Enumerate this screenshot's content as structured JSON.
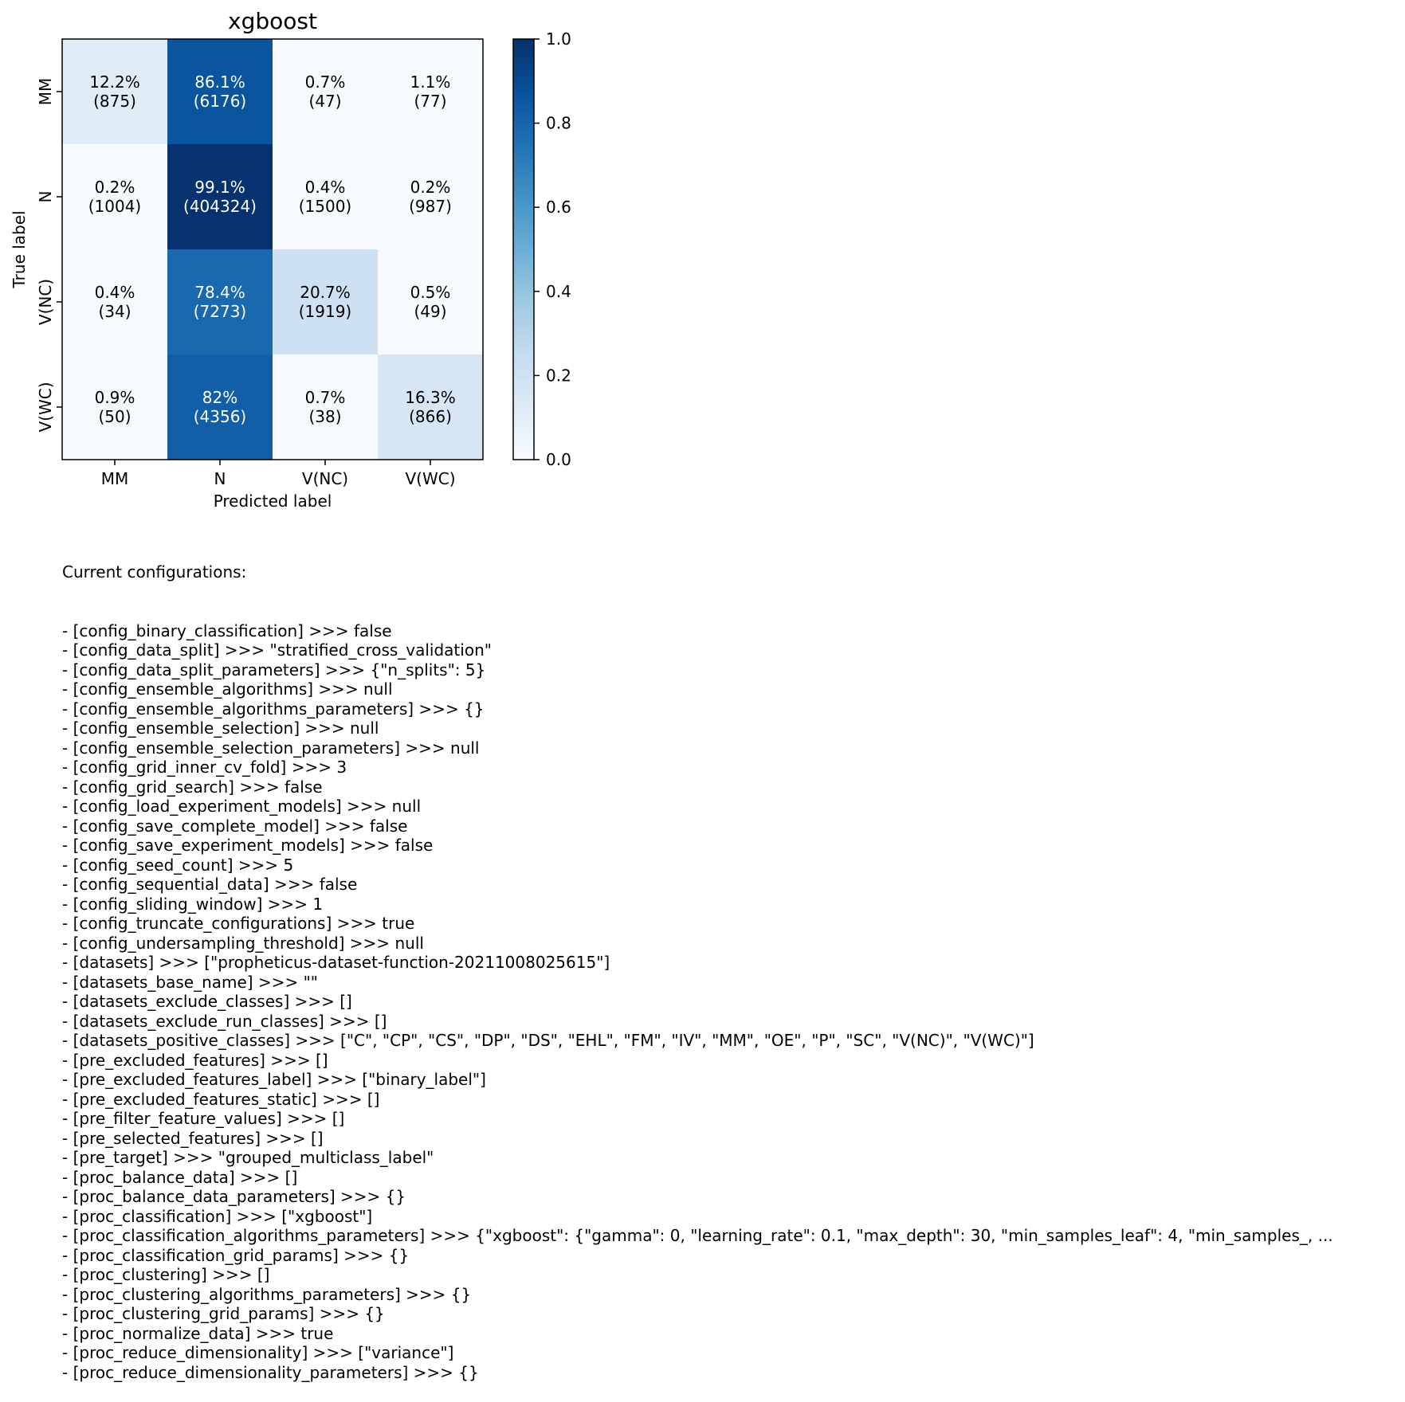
{
  "chart_data": {
    "type": "heatmap",
    "title": "xgboost",
    "xlabel": "Predicted label",
    "ylabel": "True label",
    "x_categories": [
      "MM",
      "N",
      "V(NC)",
      "V(WC)"
    ],
    "y_categories": [
      "MM",
      "N",
      "V(NC)",
      "V(WC)"
    ],
    "cells": [
      [
        {
          "pct": "12.2%",
          "count": "(875)",
          "value": 0.122
        },
        {
          "pct": "86.1%",
          "count": "(6176)",
          "value": 0.861
        },
        {
          "pct": "0.7%",
          "count": "(47)",
          "value": 0.007
        },
        {
          "pct": "1.1%",
          "count": "(77)",
          "value": 0.011
        }
      ],
      [
        {
          "pct": "0.2%",
          "count": "(1004)",
          "value": 0.002
        },
        {
          "pct": "99.1%",
          "count": "(404324)",
          "value": 0.991
        },
        {
          "pct": "0.4%",
          "count": "(1500)",
          "value": 0.004
        },
        {
          "pct": "0.2%",
          "count": "(987)",
          "value": 0.002
        }
      ],
      [
        {
          "pct": "0.4%",
          "count": "(34)",
          "value": 0.004
        },
        {
          "pct": "78.4%",
          "count": "(7273)",
          "value": 0.784
        },
        {
          "pct": "20.7%",
          "count": "(1919)",
          "value": 0.207
        },
        {
          "pct": "0.5%",
          "count": "(49)",
          "value": 0.005
        }
      ],
      [
        {
          "pct": "0.9%",
          "count": "(50)",
          "value": 0.009
        },
        {
          "pct": "82%",
          "count": "(4356)",
          "value": 0.82
        },
        {
          "pct": "0.7%",
          "count": "(38)",
          "value": 0.007
        },
        {
          "pct": "16.3%",
          "count": "(866)",
          "value": 0.163
        }
      ]
    ],
    "colorbar": {
      "range": [
        0.0,
        1.0
      ],
      "ticks": [
        "0.0",
        "0.2",
        "0.4",
        "0.6",
        "0.8",
        "1.0"
      ],
      "colormap": "Blues"
    },
    "grid": false
  },
  "config": {
    "heading": "Current configurations:",
    "lines": [
      "- [config_binary_classification] >>> false",
      "- [config_data_split] >>> \"stratified_cross_validation\"",
      "- [config_data_split_parameters] >>> {\"n_splits\": 5}",
      "- [config_ensemble_algorithms] >>> null",
      "- [config_ensemble_algorithms_parameters] >>> {}",
      "- [config_ensemble_selection] >>> null",
      "- [config_ensemble_selection_parameters] >>> null",
      "- [config_grid_inner_cv_fold] >>> 3",
      "- [config_grid_search] >>> false",
      "- [config_load_experiment_models] >>> null",
      "- [config_save_complete_model] >>> false",
      "- [config_save_experiment_models] >>> false",
      "- [config_seed_count] >>> 5",
      "- [config_sequential_data] >>> false",
      "- [config_sliding_window] >>> 1",
      "- [config_truncate_configurations] >>> true",
      "- [config_undersampling_threshold] >>> null",
      "- [datasets] >>> [\"propheticus-dataset-function-20211008025615\"]",
      "- [datasets_base_name] >>> \"\"",
      "- [datasets_exclude_classes] >>> []",
      "- [datasets_exclude_run_classes] >>> []",
      "- [datasets_positive_classes] >>> [\"C\", \"CP\", \"CS\", \"DP\", \"DS\", \"EHL\", \"FM\", \"IV\", \"MM\", \"OE\", \"P\", \"SC\", \"V(NC)\", \"V(WC)\"]",
      "- [pre_excluded_features] >>> []",
      "- [pre_excluded_features_label] >>> [\"binary_label\"]",
      "- [pre_excluded_features_static] >>> []",
      "- [pre_filter_feature_values] >>> []",
      "- [pre_selected_features] >>> []",
      "- [pre_target] >>> \"grouped_multiclass_label\"",
      "- [proc_balance_data] >>> []",
      "- [proc_balance_data_parameters] >>> {}",
      "- [proc_classification] >>> [\"xgboost\"]",
      "- [proc_classification_algorithms_parameters] >>> {\"xgboost\": {\"gamma\": 0, \"learning_rate\": 0.1, \"max_depth\": 30, \"min_samples_leaf\": 4, \"min_samples_, ...",
      "- [proc_classification_grid_params] >>> {}",
      "- [proc_clustering] >>> []",
      "- [proc_clustering_algorithms_parameters] >>> {}",
      "- [proc_clustering_grid_params] >>> {}",
      "- [proc_normalize_data] >>> true",
      "- [proc_reduce_dimensionality] >>> [\"variance\"]",
      "- [proc_reduce_dimensionality_parameters] >>> {}"
    ]
  }
}
